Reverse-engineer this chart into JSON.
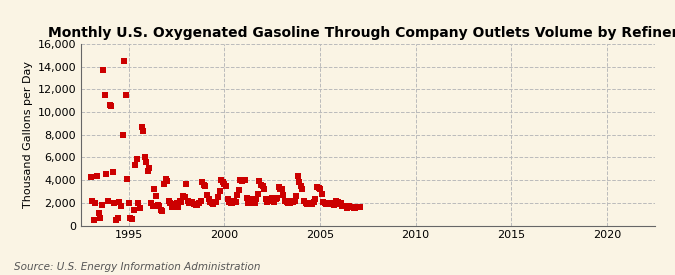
{
  "title": "Monthly U.S. Oxygenated Gasoline Through Company Outlets Volume by Refiners",
  "ylabel": "Thousand Gallons per Day",
  "source": "Source: U.S. Energy Information Administration",
  "background_color": "#faf4e4",
  "plot_bg_color": "#faf4e4",
  "marker_color": "#cc0000",
  "marker": "s",
  "marker_size": 4,
  "xlim": [
    1992.5,
    2022.5
  ],
  "ylim": [
    0,
    16000
  ],
  "yticks": [
    0,
    2000,
    4000,
    6000,
    8000,
    10000,
    12000,
    14000,
    16000
  ],
  "xticks": [
    1995,
    2000,
    2005,
    2010,
    2015,
    2020
  ],
  "grid_color": "#bbbbbb",
  "grid_style": "--",
  "data_x": [
    1993.0,
    1993.08,
    1993.17,
    1993.25,
    1993.33,
    1993.42,
    1993.5,
    1993.58,
    1993.67,
    1993.75,
    1993.83,
    1993.92,
    1994.0,
    1994.08,
    1994.17,
    1994.25,
    1994.33,
    1994.42,
    1994.5,
    1994.58,
    1994.67,
    1994.75,
    1994.83,
    1994.92,
    1995.0,
    1995.08,
    1995.17,
    1995.25,
    1995.33,
    1995.42,
    1995.5,
    1995.58,
    1995.67,
    1995.75,
    1995.83,
    1995.92,
    1996.0,
    1996.08,
    1996.17,
    1996.25,
    1996.33,
    1996.42,
    1996.5,
    1996.58,
    1996.67,
    1996.75,
    1996.83,
    1996.92,
    1997.0,
    1997.08,
    1997.17,
    1997.25,
    1997.33,
    1997.42,
    1997.5,
    1997.58,
    1997.67,
    1997.75,
    1997.83,
    1997.92,
    1998.0,
    1998.08,
    1998.17,
    1998.25,
    1998.33,
    1998.42,
    1998.5,
    1998.58,
    1998.67,
    1998.75,
    1998.83,
    1998.92,
    1999.0,
    1999.08,
    1999.17,
    1999.25,
    1999.33,
    1999.42,
    1999.5,
    1999.58,
    1999.67,
    1999.75,
    1999.83,
    1999.92,
    2000.0,
    2000.08,
    2000.17,
    2000.25,
    2000.33,
    2000.42,
    2000.5,
    2000.58,
    2000.67,
    2000.75,
    2000.83,
    2000.92,
    2001.0,
    2001.08,
    2001.17,
    2001.25,
    2001.33,
    2001.42,
    2001.5,
    2001.58,
    2001.67,
    2001.75,
    2001.83,
    2001.92,
    2002.0,
    2002.08,
    2002.17,
    2002.25,
    2002.33,
    2002.42,
    2002.5,
    2002.58,
    2002.67,
    2002.75,
    2002.83,
    2002.92,
    2003.0,
    2003.08,
    2003.17,
    2003.25,
    2003.33,
    2003.42,
    2003.5,
    2003.58,
    2003.67,
    2003.75,
    2003.83,
    2003.92,
    2004.0,
    2004.08,
    2004.17,
    2004.25,
    2004.33,
    2004.42,
    2004.5,
    2004.58,
    2004.67,
    2004.75,
    2004.83,
    2004.92,
    2005.0,
    2005.08,
    2005.17,
    2005.25,
    2005.33,
    2005.42,
    2005.5,
    2005.58,
    2005.67,
    2005.75,
    2005.83,
    2005.92,
    2006.0,
    2006.08,
    2006.17,
    2006.25,
    2006.33,
    2006.42,
    2006.5,
    2006.58,
    2006.67,
    2006.75,
    2006.83,
    2006.92,
    2007.0,
    2007.08
  ],
  "data_y": [
    4300,
    2200,
    500,
    2000,
    4400,
    1100,
    700,
    1800,
    13700,
    11500,
    4500,
    2200,
    10600,
    10500,
    4700,
    2000,
    500,
    700,
    2100,
    1700,
    8000,
    14500,
    11500,
    4100,
    2000,
    700,
    600,
    1400,
    5300,
    5900,
    2000,
    1500,
    8700,
    8300,
    6000,
    5600,
    4800,
    5100,
    2000,
    1700,
    3200,
    2600,
    1800,
    1700,
    1400,
    1300,
    3700,
    4100,
    3900,
    2200,
    2000,
    1600,
    1900,
    1700,
    2000,
    1600,
    2200,
    2100,
    2600,
    2500,
    3700,
    2200,
    2000,
    2000,
    2100,
    1900,
    1800,
    1800,
    2000,
    2200,
    3800,
    3600,
    3500,
    2700,
    2300,
    2100,
    2000,
    1900,
    2100,
    2100,
    2500,
    3000,
    4000,
    3800,
    3700,
    3500,
    2300,
    2100,
    2000,
    2000,
    2200,
    2100,
    2700,
    3100,
    4000,
    3900,
    4000,
    4000,
    2400,
    2000,
    2000,
    2000,
    2300,
    2000,
    2300,
    2800,
    3900,
    3600,
    3500,
    3200,
    2300,
    2100,
    2200,
    2200,
    2400,
    2100,
    2300,
    2400,
    3400,
    3200,
    3200,
    2700,
    2200,
    2100,
    2000,
    2000,
    2200,
    2100,
    2200,
    2600,
    4400,
    3800,
    3500,
    3200,
    2200,
    2000,
    1900,
    1900,
    2000,
    1900,
    2100,
    2300,
    3400,
    3300,
    3200,
    2800,
    2100,
    2000,
    1900,
    1900,
    2000,
    1900,
    2000,
    1800,
    2200,
    2100,
    1900,
    2000,
    1700,
    1700,
    1700,
    1500,
    1700,
    1600,
    1600,
    1500,
    1500,
    1600,
    1600,
    1600
  ],
  "title_fontsize": 10,
  "ylabel_fontsize": 8,
  "tick_fontsize": 8,
  "source_fontsize": 7.5
}
